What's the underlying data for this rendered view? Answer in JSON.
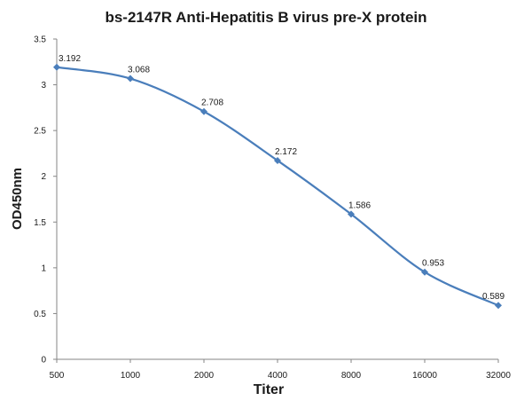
{
  "chart_data": {
    "type": "line",
    "title": "bs-2147R Anti-Hepatitis B virus pre-X protein",
    "xlabel": "Titer",
    "ylabel": "OD450nm",
    "categories": [
      "500",
      "1000",
      "2000",
      "4000",
      "8000",
      "16000",
      "32000"
    ],
    "series": [
      {
        "values": [
          3.192,
          3.068,
          2.708,
          2.172,
          1.586,
          0.953,
          0.589
        ],
        "labels": [
          "3.192",
          "3.068",
          "2.708",
          "2.172",
          "1.586",
          "0.953",
          "0.589"
        ]
      }
    ],
    "ylim": [
      0,
      3.5
    ],
    "yticks": [
      "0",
      "0.5",
      "1",
      "1.5",
      "2",
      "2.5",
      "3",
      "3.5"
    ],
    "grid": false,
    "legend": "none",
    "colors": {
      "line": "#4a7ebb",
      "axis": "#868686"
    }
  }
}
